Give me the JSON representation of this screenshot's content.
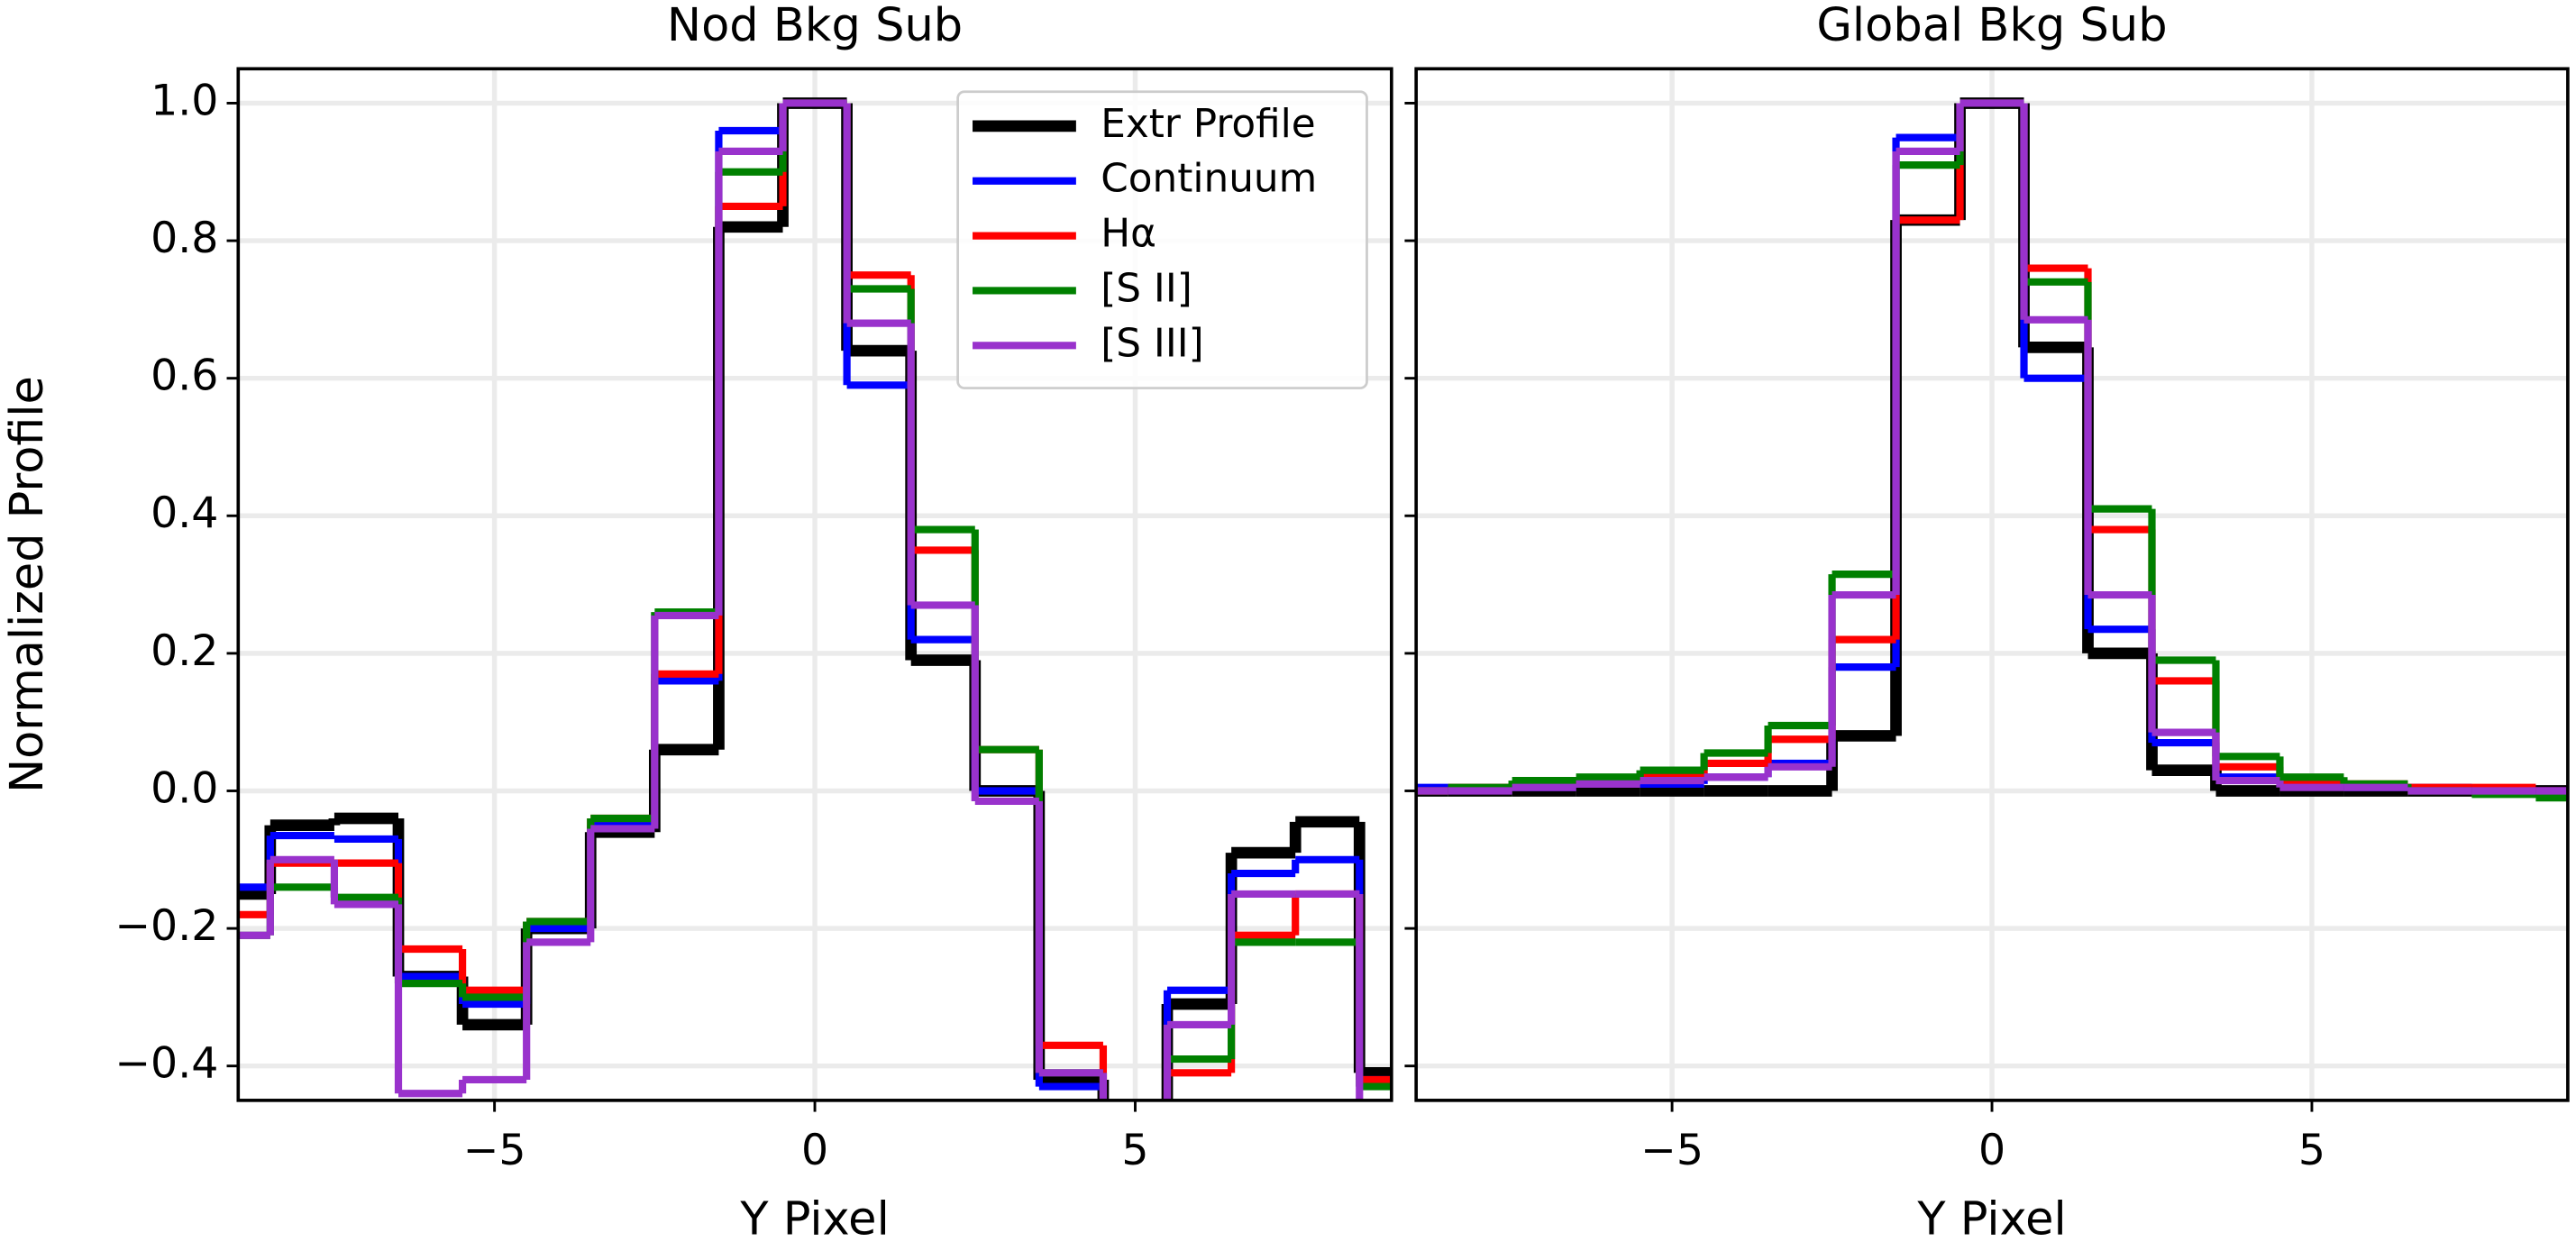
{
  "chart_data": [
    {
      "type": "line",
      "drawstyle": "steps-mid",
      "title": "Nod Bkg Sub",
      "xlabel": "Y Pixel",
      "ylabel": "Normalized Profile",
      "x": [
        -9,
        -8,
        -7,
        -6,
        -5,
        -4,
        -3,
        -2,
        -1,
        0,
        1,
        2,
        3,
        4,
        5,
        6,
        7,
        8,
        9
      ],
      "series": [
        {
          "name": "Extr Profile",
          "color": "#000000",
          "values": [
            -0.15,
            -0.05,
            -0.04,
            -0.27,
            -0.34,
            -0.2,
            -0.06,
            0.06,
            0.82,
            1.0,
            0.64,
            0.19,
            0.0,
            -0.42,
            -0.5,
            -0.31,
            -0.09,
            -0.045,
            -0.41
          ]
        },
        {
          "name": "Continuum",
          "color": "#0000ff",
          "values": [
            -0.14,
            -0.065,
            -0.07,
            -0.27,
            -0.31,
            -0.2,
            -0.05,
            0.16,
            0.96,
            1.0,
            0.59,
            0.22,
            0.0,
            -0.43,
            -0.5,
            -0.29,
            -0.12,
            -0.1,
            -0.42
          ]
        },
        {
          "name": "Hα",
          "color": "#ff0000",
          "values": [
            -0.18,
            -0.105,
            -0.105,
            -0.23,
            -0.29,
            -0.19,
            -0.04,
            0.17,
            0.85,
            1.0,
            0.75,
            0.35,
            0.06,
            -0.37,
            -0.5,
            -0.41,
            -0.21,
            -0.15,
            -0.42
          ]
        },
        {
          "name": "[S II]",
          "color": "#008000",
          "values": [
            -0.21,
            -0.14,
            -0.155,
            -0.28,
            -0.3,
            -0.19,
            -0.04,
            0.26,
            0.9,
            1.0,
            0.73,
            0.38,
            0.06,
            -0.41,
            -0.5,
            -0.39,
            -0.22,
            -0.22,
            -0.43
          ]
        },
        {
          "name": "[S III]",
          "color": "#9932cc",
          "values": [
            -0.21,
            -0.1,
            -0.165,
            -0.44,
            -0.42,
            -0.22,
            -0.055,
            0.255,
            0.93,
            1.0,
            0.68,
            0.27,
            -0.015,
            -0.41,
            -0.5,
            -0.34,
            -0.15,
            -0.15,
            -0.5
          ]
        }
      ],
      "xlim": [
        -9,
        9
      ],
      "xticks": [
        {
          "value": -5,
          "label": "−5"
        },
        0,
        5
      ],
      "ylim": [
        -0.45,
        1.05
      ],
      "yticks": [
        {
          "value": -0.4,
          "label": "−0.4"
        },
        {
          "value": -0.2,
          "label": "−0.2"
        },
        {
          "value": 0,
          "label": "0.0"
        },
        0.2,
        0.4,
        0.6,
        0.8,
        {
          "value": 1,
          "label": "1.0"
        }
      ],
      "grid": true,
      "legend": "upper right"
    },
    {
      "type": "line",
      "drawstyle": "steps-mid",
      "title": "Global Bkg Sub",
      "xlabel": "Y Pixel",
      "x": [
        -9,
        -8,
        -7,
        -6,
        -5,
        -4,
        -3,
        -2,
        -1,
        0,
        1,
        2,
        3,
        4,
        5,
        6,
        7,
        8,
        9
      ],
      "series": [
        {
          "color": "#000000",
          "values": [
            0,
            0,
            0,
            0,
            0,
            0,
            0,
            0.08,
            0.83,
            1.0,
            0.645,
            0.2,
            0.03,
            0.0,
            0,
            0,
            0,
            0,
            0
          ]
        },
        {
          "color": "#0000ff",
          "values": [
            0.005,
            0.005,
            0.005,
            0.01,
            0.01,
            0.02,
            0.04,
            0.18,
            0.95,
            1.0,
            0.6,
            0.235,
            0.07,
            0.02,
            0.01,
            0.005,
            0.005,
            0.0,
            0.0
          ]
        },
        {
          "color": "#ff0000",
          "values": [
            0,
            0.005,
            0.01,
            0.015,
            0.02,
            0.04,
            0.075,
            0.22,
            0.83,
            1.0,
            0.76,
            0.38,
            0.16,
            0.035,
            0.015,
            0.01,
            0.005,
            0.005,
            0.0
          ]
        },
        {
          "color": "#008000",
          "values": [
            0,
            0.005,
            0.015,
            0.02,
            0.03,
            0.055,
            0.095,
            0.315,
            0.91,
            1.0,
            0.74,
            0.41,
            0.19,
            0.05,
            0.02,
            0.01,
            0.0,
            -0.005,
            -0.01
          ]
        },
        {
          "color": "#9932cc",
          "values": [
            0,
            0,
            0.005,
            0.01,
            0.015,
            0.02,
            0.035,
            0.285,
            0.93,
            1.0,
            0.685,
            0.285,
            0.085,
            0.015,
            0.005,
            0.005,
            0.0,
            0.0,
            0.0
          ]
        }
      ],
      "xlim": [
        -9,
        9
      ],
      "xticks": [
        {
          "value": -5,
          "label": "−5"
        },
        0,
        5
      ],
      "ylim": [
        -0.45,
        1.05
      ],
      "yticks": [
        -0.4,
        -0.2,
        0,
        0.2,
        0.4,
        0.6,
        0.8,
        1
      ],
      "show_ytick_labels": false,
      "grid": true
    }
  ]
}
